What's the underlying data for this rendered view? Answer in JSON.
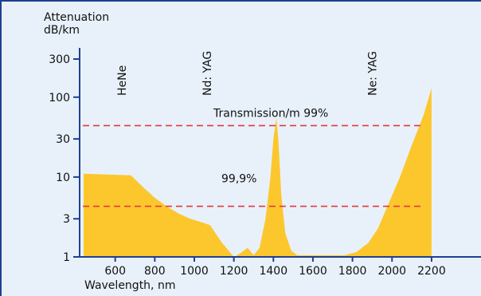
{
  "chart_data": {
    "type": "area",
    "title": "",
    "ylabel_line1": "Attenuation",
    "ylabel_line2": "dB/km",
    "xlabel": "Wavelength, nm",
    "y_scale": "log",
    "ylim": [
      1,
      300
    ],
    "xlim": [
      420,
      2450
    ],
    "y_ticks": [
      {
        "value": 1,
        "label": "1"
      },
      {
        "value": 3,
        "label": "3"
      },
      {
        "value": 10,
        "label": "10"
      },
      {
        "value": 30,
        "label": "30"
      },
      {
        "value": 100,
        "label": "100"
      },
      {
        "value": 300,
        "label": "300"
      }
    ],
    "x_ticks": [
      {
        "value": 600,
        "label": "600"
      },
      {
        "value": 800,
        "label": "800"
      },
      {
        "value": 1000,
        "label": "1000"
      },
      {
        "value": 1200,
        "label": "1200"
      },
      {
        "value": 1400,
        "label": "1400"
      },
      {
        "value": 1600,
        "label": "1600"
      },
      {
        "value": 1800,
        "label": "1800"
      },
      {
        "value": 2000,
        "label": "2000"
      },
      {
        "value": 2200,
        "label": "2200"
      }
    ],
    "fill_color": "#fcc72d",
    "line_color": "#e23a3a",
    "series": [
      {
        "x": [
          440,
          680,
          740,
          800,
          860,
          920,
          980,
          1040,
          1080,
          1140,
          1200,
          1230,
          1270,
          1300,
          1330,
          1360,
          1385,
          1400,
          1415,
          1425,
          1440,
          1460,
          1490,
          1520,
          1560,
          1600,
          1680,
          1760,
          1820,
          1880,
          1930,
          1980,
          2040,
          2100,
          2160,
          2200
        ],
        "y": [
          11,
          10.5,
          7.5,
          5.5,
          4.3,
          3.5,
          3.0,
          2.7,
          2.5,
          1.5,
          1.0,
          1.1,
          1.3,
          1.05,
          1.3,
          3.0,
          10,
          30,
          55,
          30,
          6,
          2,
          1.2,
          1.05,
          1.05,
          1.05,
          1.05,
          1.05,
          1.15,
          1.5,
          2.3,
          4.5,
          10,
          25,
          60,
          130
        ]
      }
    ],
    "annotations": [
      {
        "label": "HeNe",
        "x": 633,
        "orientation": "vertical"
      },
      {
        "label": "Nd: YAG",
        "x": 1064,
        "orientation": "vertical"
      },
      {
        "label": "Ne: YAG",
        "x": 1900,
        "orientation": "vertical"
      },
      {
        "label": "Transmission/m 99%",
        "y": 44
      },
      {
        "label": "99,9%",
        "y": 4.3
      }
    ],
    "reference_lines": [
      {
        "y": 44,
        "style": "dashed"
      },
      {
        "y": 4.3,
        "style": "dashed"
      }
    ]
  }
}
